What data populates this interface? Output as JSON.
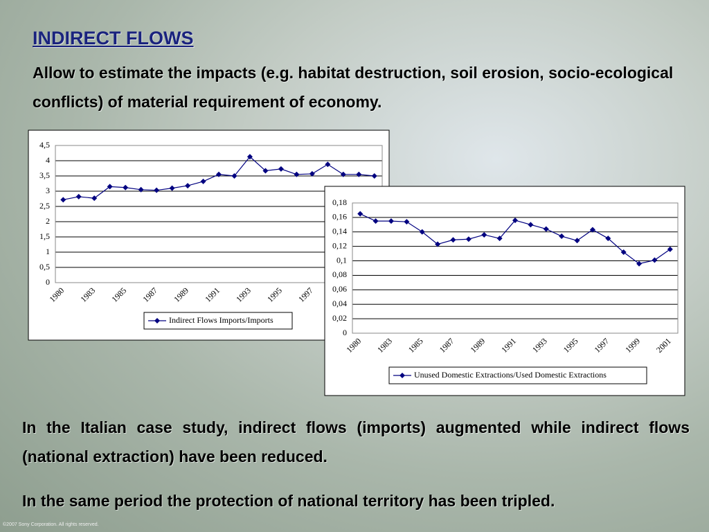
{
  "slide": {
    "title": "INDIRECT FLOWS",
    "subtitle": "Allow to estimate the impacts (e.g. habitat destruction, soil erosion, socio-ecological conflicts) of material requirement of economy.",
    "paragraphs": [
      "In the Italian case study, indirect flows (imports) augmented while indirect flows (national extraction) have been reduced.",
      "In the same period the protection of national territory has been tripled."
    ],
    "footer": "©2007 Sony Corporation. All rights reserved."
  },
  "chart_data": [
    {
      "type": "line",
      "categories": [
        "1980",
        null,
        "1983",
        null,
        "1985",
        null,
        "1987",
        null,
        "1989",
        null,
        "1991",
        null,
        "1993",
        null,
        "1995",
        null,
        "1997",
        null,
        null,
        null,
        null
      ],
      "series": [
        {
          "name": "Indirect Flows Imports/Imports",
          "color": "#000080",
          "values": [
            2.72,
            2.82,
            2.77,
            3.15,
            3.12,
            3.05,
            3.03,
            3.1,
            3.18,
            3.32,
            3.55,
            3.5,
            4.13,
            3.67,
            3.73,
            3.55,
            3.57,
            3.88,
            3.55,
            3.55,
            3.5
          ]
        }
      ],
      "ylim": [
        0,
        4.5
      ],
      "yticks": [
        0,
        {
          "value": 0.5,
          "label": "0,5"
        },
        1,
        {
          "value": 1.5,
          "label": "1,5"
        },
        2,
        {
          "value": 2.5,
          "label": "2,5"
        },
        3,
        {
          "value": 3.5,
          "label": "3,5"
        },
        4,
        {
          "value": 4.5,
          "label": "4,5"
        }
      ],
      "grid": true,
      "legend": "bottom"
    },
    {
      "type": "line",
      "categories": [
        "1980",
        null,
        "1983",
        null,
        "1985",
        null,
        "1987",
        null,
        "1989",
        null,
        "1991",
        null,
        "1993",
        null,
        "1995",
        null,
        "1997",
        null,
        "1999",
        null,
        "2001"
      ],
      "series": [
        {
          "name": "Unused Domestic Extractions/Used Domestic Extractions",
          "color": "#000080",
          "values": [
            0.165,
            0.155,
            0.155,
            0.154,
            0.14,
            0.123,
            0.129,
            0.13,
            0.136,
            0.131,
            0.156,
            0.15,
            0.144,
            0.134,
            0.128,
            0.143,
            0.131,
            0.112,
            0.096,
            0.101,
            0.116
          ]
        }
      ],
      "ylim": [
        0,
        0.18
      ],
      "yticks": [
        0,
        {
          "value": 0.02,
          "label": "0,02"
        },
        {
          "value": 0.04,
          "label": "0,04"
        },
        {
          "value": 0.06,
          "label": "0,06"
        },
        {
          "value": 0.08,
          "label": "0,08"
        },
        {
          "value": 0.1,
          "label": "0,1"
        },
        {
          "value": 0.12,
          "label": "0,12"
        },
        {
          "value": 0.14,
          "label": "0,14"
        },
        {
          "value": 0.16,
          "label": "0,16"
        },
        {
          "value": 0.18,
          "label": "0,18"
        }
      ],
      "grid": true,
      "legend": "bottom"
    }
  ]
}
